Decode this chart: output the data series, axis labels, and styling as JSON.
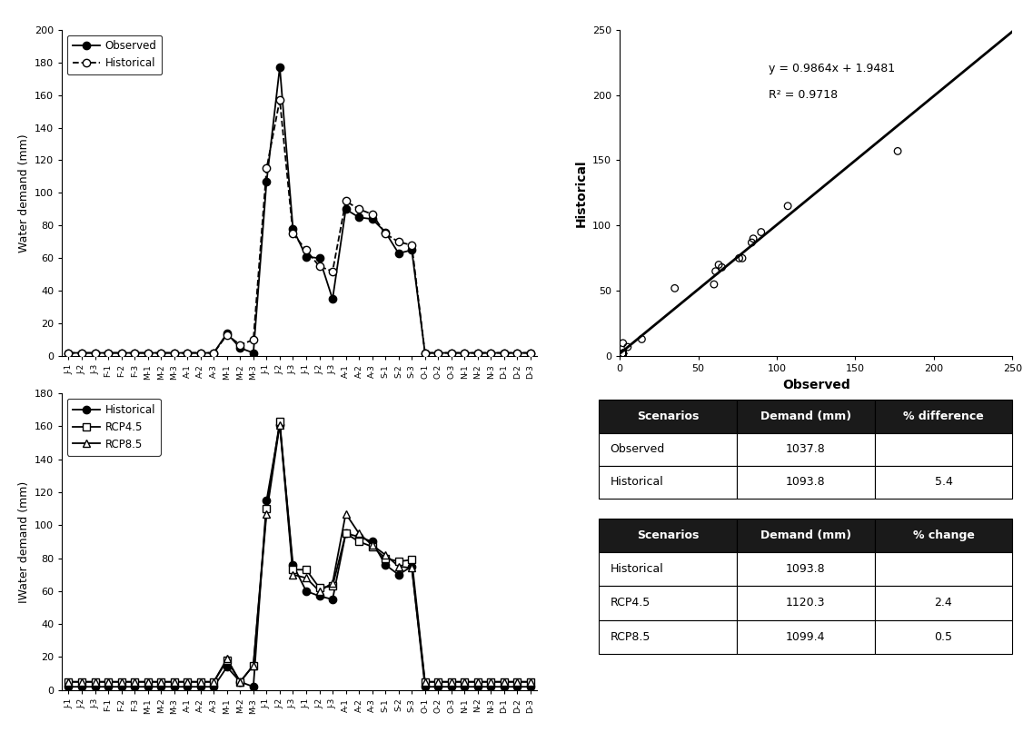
{
  "x_labels": [
    "J-1",
    "J-2",
    "J-3",
    "F-1",
    "F-2",
    "F-3",
    "M-1",
    "M-2",
    "M-3",
    "A-1",
    "A-2",
    "A-3",
    "M-1",
    "M-2",
    "M-3",
    "J-1",
    "J-2",
    "J-3",
    "J-1",
    "J-2",
    "J-3",
    "A-1",
    "A-2",
    "A-3",
    "S-1",
    "S-2",
    "S-3",
    "O-1",
    "O-2",
    "O-3",
    "N-1",
    "N-2",
    "N-3",
    "D-1",
    "D-2",
    "D-3"
  ],
  "observed": [
    2,
    2,
    2,
    2,
    2,
    2,
    2,
    2,
    2,
    2,
    2,
    2,
    14,
    5,
    2,
    107,
    177,
    78,
    61,
    60,
    35,
    90,
    85,
    84,
    76,
    63,
    65,
    2,
    2,
    2,
    2,
    2,
    2,
    2,
    2,
    2
  ],
  "historical_top": [
    2,
    2,
    2,
    2,
    2,
    2,
    2,
    2,
    2,
    2,
    2,
    2,
    13,
    7,
    10,
    115,
    157,
    75,
    65,
    55,
    52,
    95,
    90,
    87,
    75,
    70,
    68,
    2,
    2,
    2,
    2,
    2,
    2,
    2,
    2,
    2
  ],
  "historical_bot": [
    2,
    2,
    2,
    2,
    2,
    2,
    2,
    2,
    2,
    2,
    2,
    2,
    14,
    5,
    2,
    115,
    161,
    76,
    60,
    57,
    55,
    95,
    93,
    90,
    76,
    70,
    75,
    2,
    2,
    2,
    2,
    2,
    2,
    2,
    2,
    2
  ],
  "rcp45": [
    5,
    5,
    5,
    5,
    5,
    5,
    5,
    5,
    5,
    5,
    5,
    5,
    18,
    5,
    15,
    110,
    163,
    73,
    73,
    62,
    63,
    95,
    90,
    87,
    80,
    78,
    79,
    5,
    5,
    5,
    5,
    5,
    5,
    5,
    5,
    5
  ],
  "rcp85": [
    5,
    5,
    5,
    5,
    5,
    5,
    5,
    5,
    5,
    5,
    5,
    5,
    19,
    5,
    15,
    107,
    161,
    70,
    68,
    60,
    65,
    107,
    95,
    88,
    82,
    75,
    74,
    5,
    5,
    5,
    5,
    5,
    5,
    5,
    5,
    5
  ],
  "scatter_obs": [
    2,
    2,
    2,
    2,
    2,
    2,
    2,
    2,
    2,
    2,
    2,
    2,
    14,
    5,
    2,
    107,
    177,
    78,
    61,
    60,
    35,
    90,
    85,
    84,
    76,
    63,
    65,
    2,
    2,
    2,
    2,
    2,
    2,
    2,
    2,
    2
  ],
  "scatter_hist": [
    2,
    2,
    2,
    2,
    2,
    2,
    2,
    2,
    2,
    2,
    2,
    2,
    13,
    7,
    10,
    115,
    157,
    75,
    65,
    55,
    52,
    95,
    90,
    87,
    75,
    70,
    68,
    2,
    2,
    2,
    2,
    2,
    2,
    2,
    2,
    2
  ],
  "reg_eq": "y = 0.9864x + 1.9481",
  "reg_r2": "R² = 0.9718",
  "reg_slope": 0.9864,
  "reg_intercept": 1.9481,
  "table1_headers": [
    "Scenarios",
    "Demand (mm)",
    "% difference"
  ],
  "table1_data": [
    [
      "Observed",
      "1037.8",
      ""
    ],
    [
      "Historical",
      "1093.8",
      "5.4"
    ]
  ],
  "table2_headers": [
    "Scenarios",
    "Demand (mm)",
    "% change"
  ],
  "table2_data": [
    [
      "Historical",
      "1093.8",
      ""
    ],
    [
      "RCP4.5",
      "1120.3",
      "2.4"
    ],
    [
      "RCP8.5",
      "1099.4",
      "0.5"
    ]
  ],
  "header_color": "#1a1a1a",
  "header_text_color": "white"
}
